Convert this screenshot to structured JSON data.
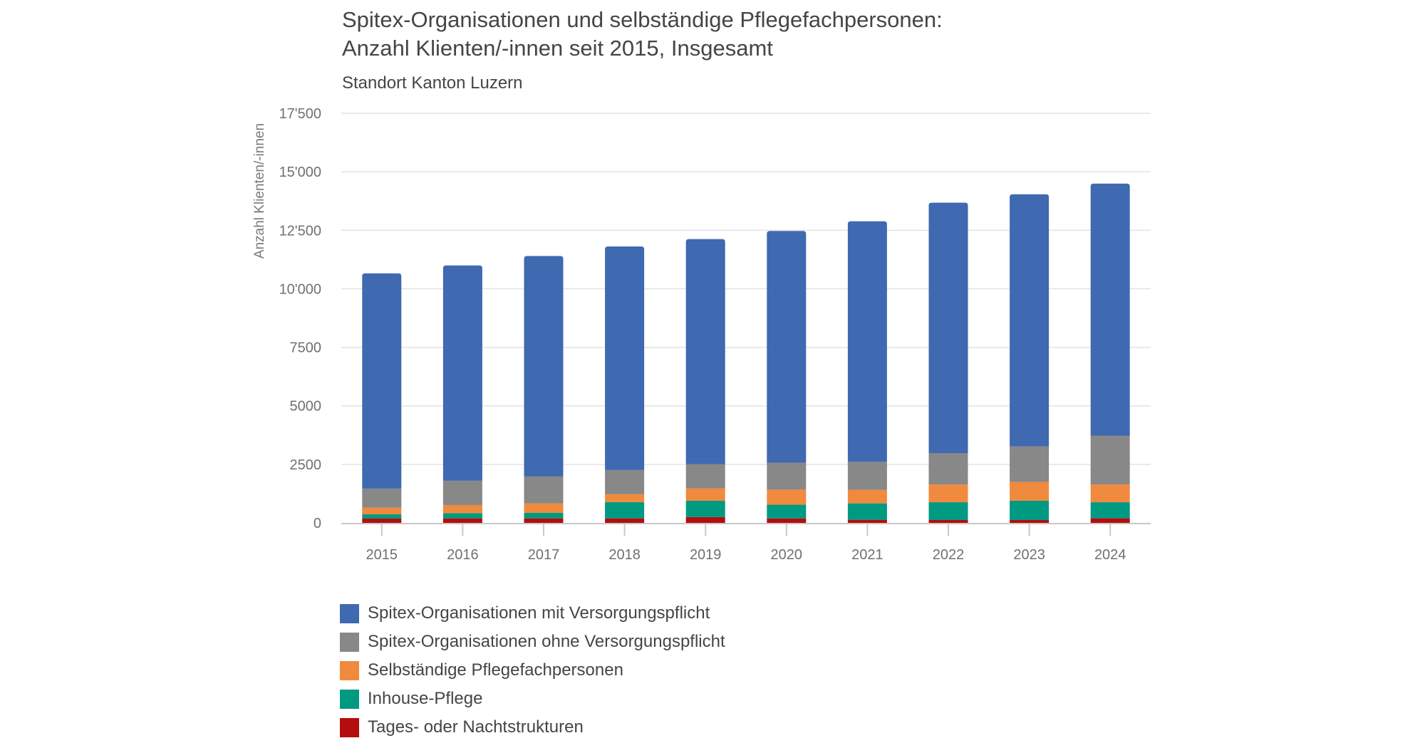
{
  "chart_data": {
    "type": "bar",
    "stacked": true,
    "title": "Spitex-Organisationen und selbständige Pflegefachpersonen:",
    "title_line2": "Anzahl Klienten/-innen seit 2015, Insgesamt",
    "subtitle": "Standort Kanton Luzern",
    "xlabel": "",
    "ylabel": "Anzahl Klienten/-innen",
    "ylim": [
      0,
      17500
    ],
    "yticks": [
      0,
      2500,
      5000,
      7500,
      10000,
      12500,
      15000,
      17500
    ],
    "ytick_labels": [
      "0",
      "2500",
      "5000",
      "7500",
      "10'000",
      "12'500",
      "15'000",
      "17'500"
    ],
    "grid": true,
    "legend_position": "bottom-left",
    "categories": [
      "2015",
      "2016",
      "2017",
      "2018",
      "2019",
      "2020",
      "2021",
      "2022",
      "2023",
      "2024"
    ],
    "series": [
      {
        "name": "Tages- oder Nachtstrukturen",
        "color": "#b30d0d",
        "values": [
          183,
          193,
          193,
          193,
          250,
          190,
          132,
          123,
          123,
          195
        ]
      },
      {
        "name": "Inhouse-Pflege",
        "color": "#009982",
        "values": [
          183,
          224,
          234,
          691,
          693,
          585,
          701,
          758,
          820,
          686
        ]
      },
      {
        "name": "Selbständige Pflegefachpersonen",
        "color": "#f08a3e",
        "values": [
          284,
          346,
          407,
          345,
          530,
          645,
          579,
          759,
          809,
          759
        ]
      },
      {
        "name": "Spitex-Organisationen ohne Versorgungspflicht",
        "color": "#888888",
        "values": [
          813,
          1037,
          1149,
          1026,
          1037,
          1150,
          1199,
          1342,
          1518,
          2090
        ]
      },
      {
        "name": "Spitex-Organisationen mit Versorgungspflicht",
        "color": "#3f69b0",
        "values": [
          9197,
          9200,
          9417,
          9555,
          9615,
          9900,
          10276,
          10698,
          10767,
          10764
        ]
      }
    ],
    "legend_order": [
      "Spitex-Organisationen mit Versorgungspflicht",
      "Spitex-Organisationen ohne Versorgungspflicht",
      "Selbständige Pflegefachpersonen",
      "Inhouse-Pflege",
      "Tages- oder Nachtstrukturen"
    ]
  }
}
